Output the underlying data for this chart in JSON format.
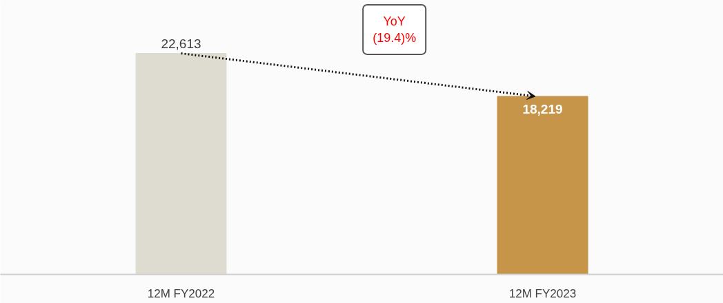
{
  "chart_data": {
    "type": "bar",
    "categories": [
      "12M FY2022",
      "12M FY2023"
    ],
    "values": [
      22613,
      18219
    ],
    "colors": [
      "#dedcd0",
      "#c6954a"
    ],
    "value_labels": [
      "22,613",
      "18,219"
    ],
    "annotations": [
      "YoY\n(19.4)%"
    ],
    "grid": false
  }
}
